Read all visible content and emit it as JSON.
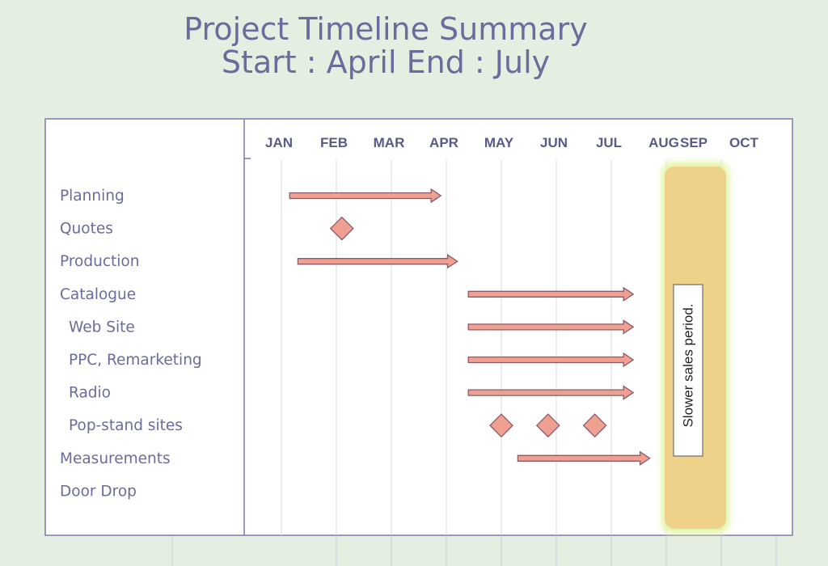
{
  "title": {
    "line1": "Project Timeline Summary",
    "line2": "Start : April End : July"
  },
  "colors": {
    "background": "#e4efe1",
    "frame": "#7a7aa8",
    "text": "#6b6b9c",
    "month_text": "#5a5a8a",
    "arrow_fill": "#f0a090",
    "arrow_stroke": "#8a5a6a",
    "highlight_fill": "#efd28a",
    "highlight_glow": "#e4f5a8"
  },
  "chart_data": {
    "type": "gantt",
    "months": [
      "JAN",
      "FEB",
      "MAR",
      "APR",
      "MAY",
      "JUN",
      "JUL",
      "AUG",
      "SEP",
      "OCT"
    ],
    "tasks": [
      {
        "name": "Planning",
        "indent": false,
        "kind": "bar",
        "start": 0.15,
        "end": 2.9
      },
      {
        "name": "Quotes",
        "indent": false,
        "kind": "milestone",
        "points": [
          1.1
        ]
      },
      {
        "name": "Production",
        "indent": false,
        "kind": "bar",
        "start": 0.3,
        "end": 3.2
      },
      {
        "name": "Catalogue",
        "indent": false,
        "kind": "bar",
        "start": 3.4,
        "end": 6.4
      },
      {
        "name": "Web Site",
        "indent": true,
        "kind": "bar",
        "start": 3.4,
        "end": 6.4
      },
      {
        "name": "PPC, Remarketing",
        "indent": true,
        "kind": "bar",
        "start": 3.4,
        "end": 6.4
      },
      {
        "name": "Radio",
        "indent": true,
        "kind": "bar",
        "start": 3.4,
        "end": 6.4
      },
      {
        "name": "Pop-stand sites",
        "indent": true,
        "kind": "milestone",
        "points": [
          4.0,
          4.85,
          5.7
        ]
      },
      {
        "name": "Measurements",
        "indent": false,
        "kind": "bar",
        "start": 4.3,
        "end": 6.7
      },
      {
        "name": "Door Drop",
        "indent": false,
        "kind": "none"
      }
    ],
    "highlight": {
      "start": 7.0,
      "end": 8.0,
      "label": "Slower sales period."
    }
  }
}
